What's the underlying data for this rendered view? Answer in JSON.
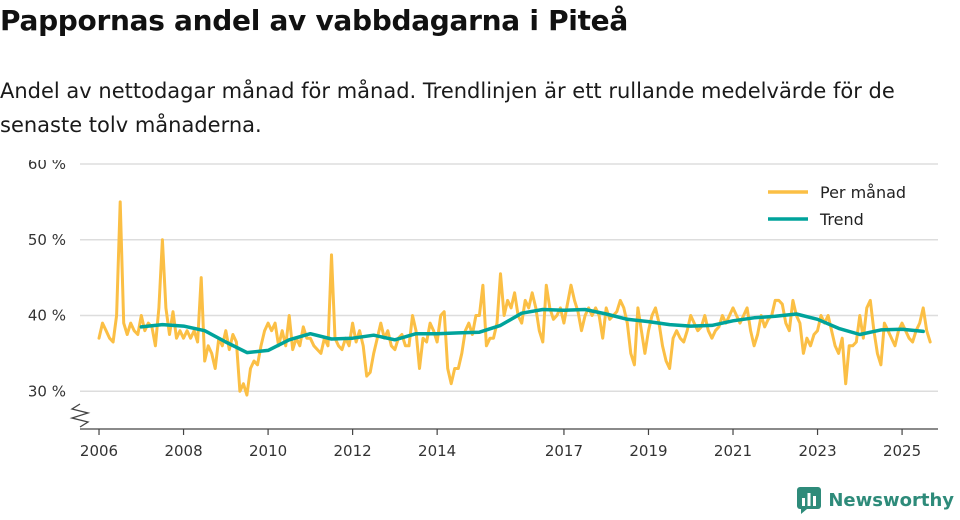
{
  "header": {
    "title": "Pappornas andel av vabbdagarna i Piteå",
    "subtitle": "Andel av nettodagar månad för månad. Trendlinjen är ett rullande medelvärde för de senaste tolv månaderna."
  },
  "brand": {
    "name": "Newsworthy",
    "icon": "newsworthy-logo-icon",
    "color": "#2e8b7a"
  },
  "colors": {
    "monthly": "#fbbf45",
    "trend": "#00a39b",
    "grid": "#dddddd",
    "axis": "#444444"
  },
  "chart_data": {
    "type": "line",
    "title": "Pappornas andel av vabbdagarna i Piteå",
    "xlabel": "",
    "ylabel": "",
    "ylim": [
      27,
      60
    ],
    "xlim": [
      2005.55,
      2025.85
    ],
    "y_ticks": [
      30,
      40,
      50,
      60
    ],
    "y_tick_labels": [
      "30 %",
      "40 %",
      "50 %",
      "60 %"
    ],
    "x_ticks": [
      2006,
      2008,
      2010,
      2012,
      2014,
      2017,
      2019,
      2021,
      2023,
      2025
    ],
    "x_tick_labels": [
      "2006",
      "2008",
      "2010",
      "2012",
      "2014",
      "2017",
      "2019",
      "2021",
      "2023",
      "2025"
    ],
    "grid": true,
    "legend_position": "top-right",
    "broken_y_axis": true,
    "series": [
      {
        "name": "Per månad",
        "x_start": 2006.0,
        "step": 0.08333,
        "values": [
          37,
          39,
          38,
          37,
          36.5,
          40,
          55,
          39,
          37.5,
          39,
          38,
          37.5,
          40,
          38,
          39,
          38.5,
          36,
          41,
          50,
          41,
          37.5,
          40.5,
          37,
          38,
          37,
          38,
          37,
          38,
          36.5,
          45,
          34,
          36,
          35,
          33,
          37,
          36,
          38,
          35.5,
          37.5,
          36.5,
          30,
          31,
          29.5,
          33,
          34,
          33.5,
          36,
          38,
          39,
          38,
          39,
          36,
          38,
          36,
          40,
          35.5,
          37,
          36,
          38.5,
          37,
          37,
          36,
          35.5,
          35,
          37,
          36,
          48,
          37,
          36,
          35.5,
          37,
          36,
          39,
          36.5,
          38,
          36,
          32,
          32.5,
          35,
          37,
          39,
          37,
          38,
          36,
          35.5,
          37,
          37.5,
          36,
          36,
          40,
          38,
          33,
          37,
          36.5,
          39,
          38,
          36.5,
          40,
          40.5,
          33,
          31,
          33,
          33,
          35,
          38,
          39,
          37.5,
          40,
          40,
          44,
          36,
          37,
          37,
          39,
          45.5,
          40,
          42,
          41,
          43,
          40,
          39,
          42,
          41,
          43,
          41,
          38,
          36.5,
          44,
          41,
          39.5,
          40,
          41,
          39,
          41.5,
          44,
          42,
          40.5,
          38,
          40,
          41,
          40,
          41,
          40,
          37,
          41,
          39.5,
          40,
          40.5,
          42,
          41,
          39,
          35,
          33.5,
          41,
          38,
          35,
          38,
          40,
          41,
          39,
          36,
          34,
          33,
          37,
          38,
          37,
          36.5,
          38,
          40,
          39,
          38,
          38.5,
          40,
          38,
          37,
          38,
          38.5,
          40,
          39,
          40,
          41,
          40,
          39,
          40,
          41,
          38,
          36,
          37.5,
          40,
          38.5,
          39.5,
          40,
          42,
          42,
          41.5,
          39,
          38,
          42,
          40,
          39,
          35,
          37,
          36,
          37.5,
          38,
          40,
          39,
          40,
          38,
          36,
          35,
          37,
          31,
          36,
          36,
          36.5,
          40,
          37,
          41,
          42,
          38,
          35,
          33.5,
          39,
          38,
          37,
          36,
          38,
          39,
          38,
          37,
          36.5,
          38,
          39,
          41,
          38,
          36.5
        ]
      },
      {
        "name": "Trend",
        "x": [
          2007.0,
          2007.5,
          2008.0,
          2008.5,
          2009.0,
          2009.5,
          2010.0,
          2010.5,
          2011.0,
          2011.5,
          2012.0,
          2012.5,
          2013.0,
          2013.5,
          2014.0,
          2014.5,
          2015.0,
          2015.5,
          2016.0,
          2016.5,
          2017.0,
          2017.5,
          2018.0,
          2018.5,
          2019.0,
          2019.5,
          2020.0,
          2020.5,
          2021.0,
          2021.5,
          2022.0,
          2022.5,
          2023.0,
          2023.5,
          2024.0,
          2024.5,
          2025.0,
          2025.5
        ],
        "values": [
          38.5,
          38.8,
          38.6,
          38,
          36.5,
          35.1,
          35.4,
          36.8,
          37.6,
          36.9,
          37,
          37.4,
          36.8,
          37.6,
          37.6,
          37.7,
          37.8,
          38.7,
          40.3,
          40.8,
          40.7,
          40.8,
          40.2,
          39.5,
          39.2,
          38.8,
          38.6,
          38.7,
          39.3,
          39.7,
          39.9,
          40.2,
          39.5,
          38.3,
          37.5,
          38.1,
          38.2,
          37.9
        ]
      }
    ]
  }
}
